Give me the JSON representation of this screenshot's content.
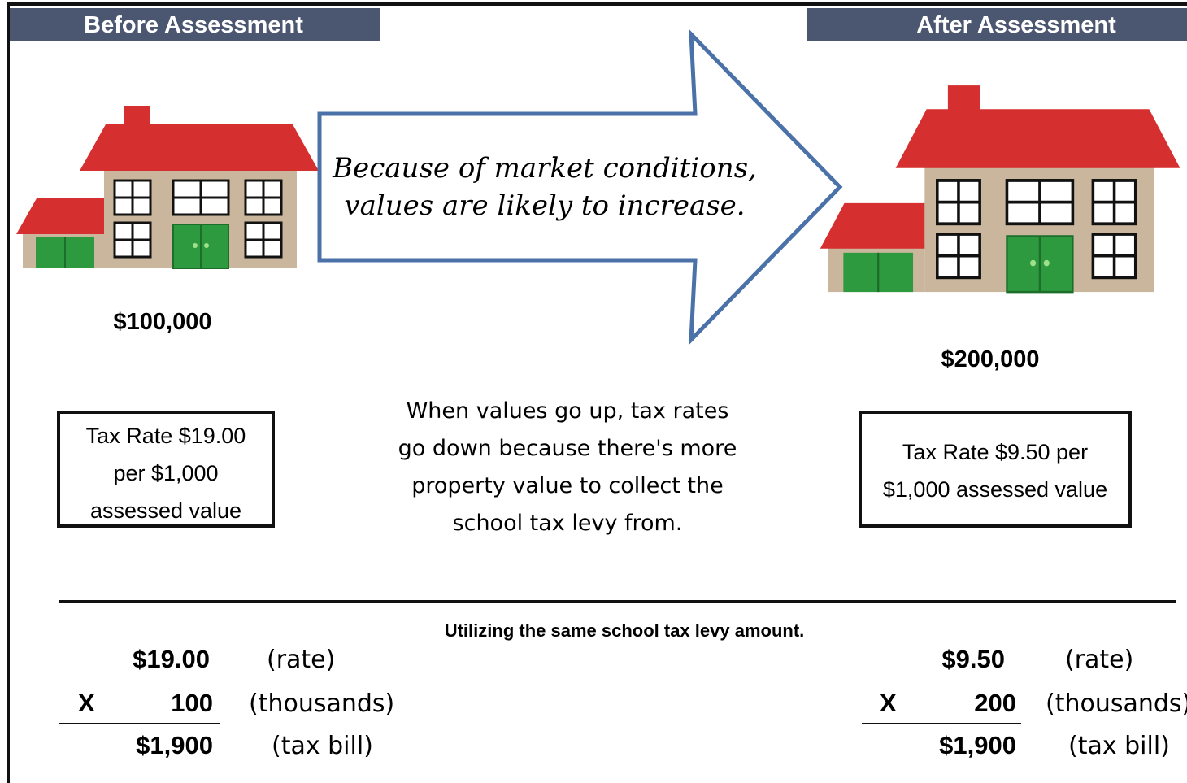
{
  "header": {
    "before": "Before Assessment",
    "after": "After Assessment"
  },
  "arrow_text": [
    "Because of market conditions,",
    "values are likely to increase."
  ],
  "before": {
    "value": "$100,000",
    "rate_box": [
      "Tax Rate $19.00",
      "per $1,000",
      "assessed value"
    ],
    "calc": {
      "rate": "$19.00",
      "rate_label": "(rate)",
      "operator": "X",
      "thousands": "100",
      "thousands_label": "(thousands)",
      "bill": "$1,900",
      "bill_label": "(tax bill)"
    }
  },
  "after": {
    "value": "$200,000",
    "rate_box": [
      "Tax Rate $9.50 per",
      "$1,000 assessed value"
    ],
    "calc": {
      "rate": "$9.50",
      "rate_label": "(rate)",
      "operator": "X",
      "thousands": "200",
      "thousands_label": "(thousands)",
      "bill": "$1,900",
      "bill_label": "(tax bill)"
    }
  },
  "note": [
    "When values go up, tax rates",
    "go down because there's more",
    "property value to collect the",
    "school tax levy from."
  ],
  "footer_caption": "Utilizing the same school tax levy amount."
}
